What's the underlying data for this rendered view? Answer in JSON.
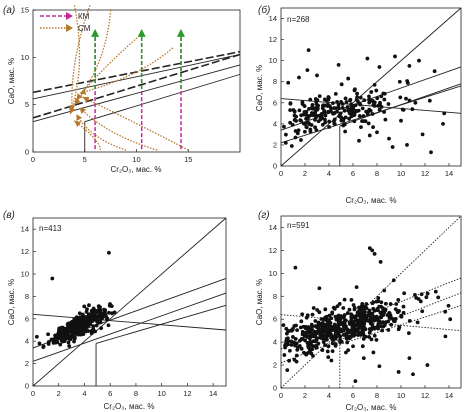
{
  "figure": {
    "panels": [
      "a",
      "b",
      "c",
      "d"
    ]
  },
  "chart_data": [
    {
      "id": "a",
      "panel_label": "(а)",
      "type": "line",
      "xlabel": "Cr₂O₃, мас. %",
      "ylabel": "CaO, мас. %",
      "xlim": [
        0,
        20
      ],
      "ylim": [
        0,
        15
      ],
      "xticks": [
        "0",
        "5",
        "10",
        "15"
      ],
      "yticks": [
        "0",
        "5",
        "10",
        "15"
      ],
      "legend": [
        "КМ",
        "СМ"
      ],
      "colors": {
        "km": "#c22a9a",
        "km_head": "#2a9a2a",
        "cm": "#b5772a",
        "cm_head": "#b5772a"
      },
      "lines": [
        {
          "name": "upper-dashed",
          "style": "dashed",
          "points": [
            [
              0,
              6.3
            ],
            [
              20,
              10.6
            ]
          ]
        },
        {
          "name": "lower-dashed",
          "style": "dashed",
          "points": [
            [
              0,
              3.6
            ],
            [
              20,
              10.3
            ]
          ]
        },
        {
          "name": "line-1",
          "style": "solid",
          "points": [
            [
              0,
              5.6
            ],
            [
              20,
              10.3
            ]
          ]
        },
        {
          "name": "line-2",
          "style": "solid",
          "points": [
            [
              0,
              3.2
            ],
            [
              20,
              9.2
            ]
          ]
        },
        {
          "name": "line-3",
          "style": "solid",
          "points": [
            [
              5,
              3.2
            ],
            [
              20,
              8.2
            ]
          ]
        },
        {
          "name": "vertical",
          "style": "solid",
          "points": [
            [
              5,
              0
            ],
            [
              5,
              3.2
            ]
          ]
        }
      ],
      "km_arrows": [
        {
          "x": 6.0,
          "y_from": 0.3,
          "y_to": 13.0
        },
        {
          "x": 10.5,
          "y_from": 0.3,
          "y_to": 13.0
        },
        {
          "x": 14.3,
          "y_from": 0.3,
          "y_to": 13.0
        }
      ],
      "cm_trends": [
        {
          "from": [
            4.0,
            15.5
          ],
          "to": [
            3.6,
            4.0
          ]
        },
        {
          "from": [
            5.5,
            15.5
          ],
          "to": [
            3.8,
            4.3
          ]
        },
        {
          "from": [
            7.5,
            15.0
          ],
          "to": [
            4.0,
            5.0
          ]
        },
        {
          "from": [
            10.5,
            12.5
          ],
          "to": [
            4.2,
            5.5
          ]
        },
        {
          "from": [
            13.5,
            11.0
          ],
          "to": [
            4.5,
            6.2
          ]
        },
        {
          "from": [
            12.0,
            0.2
          ],
          "to": [
            4.5,
            4.7
          ]
        },
        {
          "from": [
            15.0,
            0.2
          ],
          "to": [
            4.8,
            5.8
          ]
        },
        {
          "from": [
            9.0,
            0.2
          ],
          "to": [
            4.2,
            4.0
          ]
        },
        {
          "from": [
            6.5,
            0.2
          ],
          "to": [
            4.0,
            3.3
          ]
        }
      ]
    },
    {
      "id": "b",
      "panel_label": "(б)",
      "type": "scatter",
      "annotation": "n=268",
      "xlabel": "Cr₂O₃, мас. %",
      "ylabel": "CaO, мас. %",
      "xlim": [
        0,
        15
      ],
      "ylim": [
        0,
        15
      ],
      "xticks": [
        "0",
        "2",
        "4",
        "6",
        "8",
        "10",
        "12",
        "14"
      ],
      "yticks": [
        "0",
        "2",
        "4",
        "6",
        "8",
        "10",
        "12",
        "14"
      ],
      "lines": [
        {
          "points": [
            [
              0,
              0
            ],
            [
              15,
              15
            ]
          ]
        },
        {
          "points": [
            [
              0,
              6.4
            ],
            [
              15,
              5.0
            ]
          ]
        },
        {
          "points": [
            [
              0,
              3.4
            ],
            [
              15,
              9.4
            ]
          ]
        },
        {
          "points": [
            [
              0,
              2.2
            ],
            [
              15,
              7.6
            ]
          ]
        },
        {
          "points": [
            [
              4.9,
              3.8
            ],
            [
              15,
              7.8
            ]
          ]
        },
        {
          "points": [
            [
              4.9,
              0
            ],
            [
              4.9,
              3.8
            ]
          ]
        }
      ],
      "cluster": {
        "n": 268,
        "seed": 11,
        "center": [
          4.5,
          5.2
        ],
        "sx": 2.6,
        "sy": 0.9,
        "slope": 0.18,
        "extra": [
          [
            2.2,
            9.1
          ],
          [
            1.5,
            8.4
          ],
          [
            3.0,
            8.6
          ],
          [
            4.8,
            9.6
          ],
          [
            8.2,
            9.4
          ],
          [
            10.7,
            9.5
          ],
          [
            11.5,
            10.0
          ],
          [
            9.5,
            10.4
          ],
          [
            7.2,
            10.2
          ],
          [
            0.6,
            7.9
          ],
          [
            2.3,
            11.0
          ],
          [
            5.6,
            8.3
          ],
          [
            7.8,
            7.7
          ],
          [
            10.5,
            2.0
          ],
          [
            9.3,
            1.8
          ],
          [
            11.8,
            3.0
          ],
          [
            8.0,
            3.2
          ],
          [
            9.0,
            2.6
          ],
          [
            12.5,
            1.3
          ],
          [
            13.5,
            4.0
          ],
          [
            6.5,
            2.4
          ],
          [
            7.4,
            2.9
          ],
          [
            13.6,
            5.0
          ],
          [
            12.4,
            6.2
          ],
          [
            11.2,
            6.0
          ],
          [
            10.0,
            4.3
          ],
          [
            8.7,
            4.4
          ],
          [
            9.9,
            8.0
          ],
          [
            12.8,
            9.0
          ],
          [
            0.4,
            2.2
          ],
          [
            0.9,
            1.9
          ],
          [
            1.4,
            3.1
          ]
        ]
      }
    },
    {
      "id": "c",
      "panel_label": "(в)",
      "type": "scatter",
      "annotation": "n=413",
      "xlabel": "Cr₂O₃, мас. %",
      "ylabel": "CaO, мас. %",
      "xlim": [
        0,
        15
      ],
      "ylim": [
        0,
        15
      ],
      "xticks": [
        "0",
        "2",
        "4",
        "6",
        "8",
        "10",
        "12",
        "14"
      ],
      "yticks": [
        "0",
        "2",
        "4",
        "6",
        "8",
        "10",
        "12",
        "14"
      ],
      "lines": [
        {
          "points": [
            [
              0,
              0
            ],
            [
              15,
              15
            ]
          ]
        },
        {
          "points": [
            [
              0,
              6.4
            ],
            [
              15,
              5.0
            ]
          ]
        },
        {
          "points": [
            [
              0,
              3.4
            ],
            [
              15,
              9.6
            ]
          ]
        },
        {
          "points": [
            [
              0,
              2.2
            ],
            [
              15,
              8.3
            ]
          ]
        },
        {
          "points": [
            [
              4.9,
              3.8
            ],
            [
              15,
              7.2
            ]
          ]
        },
        {
          "points": [
            [
              4.9,
              0
            ],
            [
              4.9,
              3.8
            ]
          ]
        }
      ],
      "cluster": {
        "n": 413,
        "seed": 29,
        "center": [
          3.5,
          5.3
        ],
        "sx": 1.0,
        "sy": 0.45,
        "slope": 0.55,
        "extra": [
          [
            1.5,
            9.6
          ],
          [
            5.9,
            11.9
          ],
          [
            0.5,
            3.8
          ],
          [
            0.3,
            4.4
          ]
        ]
      }
    },
    {
      "id": "d",
      "panel_label": "(г)",
      "type": "scatter",
      "annotation": "n=591",
      "xlabel": "Cr₂O₃, мас. %",
      "ylabel": "CaO, мас. %",
      "xlim": [
        0,
        15
      ],
      "ylim": [
        0,
        15
      ],
      "xticks": [
        "0",
        "2",
        "4",
        "6",
        "8",
        "10",
        "12",
        "14"
      ],
      "yticks": [
        "0",
        "2",
        "4",
        "6",
        "8",
        "10",
        "12",
        "14"
      ],
      "lines": [
        {
          "points": [
            [
              0,
              0
            ],
            [
              15,
              15
            ]
          ]
        },
        {
          "points": [
            [
              0,
              6.4
            ],
            [
              15,
              5.0
            ]
          ]
        },
        {
          "points": [
            [
              0,
              3.4
            ],
            [
              15,
              9.6
            ]
          ]
        },
        {
          "points": [
            [
              0,
              2.2
            ],
            [
              15,
              8.3
            ]
          ]
        },
        {
          "points": [
            [
              4.9,
              3.8
            ],
            [
              15,
              7.2
            ]
          ]
        },
        {
          "points": [
            [
              4.9,
              0
            ],
            [
              4.9,
              3.8
            ]
          ]
        }
      ],
      "cluster": {
        "n": 591,
        "seed": 47,
        "center": [
          5.0,
          5.2
        ],
        "sx": 2.8,
        "sy": 0.8,
        "slope": 0.25,
        "extra": [
          [
            7.4,
            12.2
          ],
          [
            7.6,
            12.0
          ],
          [
            7.8,
            11.7
          ],
          [
            8.3,
            11.0
          ],
          [
            1.2,
            10.5
          ],
          [
            9.4,
            9.4
          ],
          [
            3.2,
            8.7
          ],
          [
            6.3,
            8.8
          ],
          [
            8.6,
            8.5
          ],
          [
            12.9,
            8.4
          ],
          [
            13.1,
            7.9
          ],
          [
            14.1,
            6.0
          ],
          [
            13.7,
            4.5
          ],
          [
            12.2,
            2.0
          ],
          [
            9.8,
            1.4
          ],
          [
            10.7,
            2.6
          ],
          [
            6.9,
            2.6
          ],
          [
            7.7,
            3.1
          ],
          [
            8.2,
            1.9
          ],
          [
            5.6,
            3.3
          ],
          [
            4.2,
            2.4
          ],
          [
            11.0,
            1.2
          ],
          [
            6.2,
            0.6
          ]
        ]
      }
    }
  ]
}
